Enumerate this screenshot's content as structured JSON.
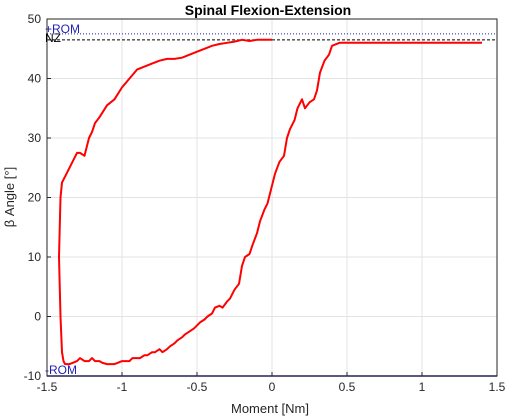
{
  "chart_data": {
    "type": "line",
    "title": "Spinal Flexion-Extension",
    "xlabel": "Moment [Nm]",
    "ylabel": "β Angle [°]",
    "xlim": [
      -1.5,
      1.5
    ],
    "ylim": [
      -10,
      50
    ],
    "xticks": [
      -1.5,
      -1,
      -0.5,
      0,
      0.5,
      1,
      1.5
    ],
    "xtick_labels": [
      "-1.5",
      "-1",
      "-0.5",
      "0",
      "0.5",
      "1",
      "1.5"
    ],
    "yticks": [
      -10,
      0,
      10,
      20,
      30,
      40,
      50
    ],
    "ytick_labels": [
      "-10",
      "0",
      "10",
      "20",
      "30",
      "40",
      "50"
    ],
    "grid": true,
    "reference_lines": [
      {
        "label": "+ROM",
        "y": 47.5,
        "color": "#1f1fb4",
        "style": "dotted"
      },
      {
        "label": "NZ",
        "y": 46.5,
        "color": "#000000",
        "style": "dashed"
      },
      {
        "label": "-ROM",
        "y": -10,
        "color": "#1f1fb4",
        "style": "solid"
      }
    ],
    "series": [
      {
        "color": "#ff0000",
        "x": [
          1.4,
          1.2,
          1.0,
          0.8,
          0.6,
          0.5,
          0.45,
          0.4,
          0.38,
          0.35,
          0.32,
          0.3,
          0.28,
          0.25,
          0.22,
          0.2,
          0.17,
          0.15,
          0.12,
          0.1,
          0.08,
          0.05,
          0.02,
          0.0,
          -0.03,
          -0.05,
          -0.08,
          -0.1,
          -0.13,
          -0.15,
          -0.18,
          -0.2,
          -0.22,
          -0.25,
          -0.28,
          -0.3,
          -0.33,
          -0.35,
          -0.38,
          -0.4,
          -0.43,
          -0.45,
          -0.48,
          -0.5,
          -0.52,
          -0.55,
          -0.58,
          -0.6,
          -0.63,
          -0.65,
          -0.68,
          -0.7,
          -0.73,
          -0.75,
          -0.78,
          -0.8,
          -0.83,
          -0.85,
          -0.88,
          -0.9,
          -0.93,
          -0.95,
          -0.98,
          -1.0,
          -1.03,
          -1.05,
          -1.08,
          -1.1,
          -1.13,
          -1.15,
          -1.18,
          -1.2,
          -1.22,
          -1.25,
          -1.28,
          -1.3,
          -1.33,
          -1.35,
          -1.38,
          -1.39,
          -1.4,
          -1.41,
          -1.42,
          -1.41,
          -1.4,
          -1.39,
          -1.38,
          -1.37,
          -1.35,
          -1.33,
          -1.3,
          -1.28,
          -1.25,
          -1.22,
          -1.2,
          -1.18,
          -1.15,
          -1.1,
          -1.05,
          -1.0,
          -0.95,
          -0.9,
          -0.85,
          -0.8,
          -0.75,
          -0.7,
          -0.65,
          -0.6,
          -0.55,
          -0.5,
          -0.45,
          -0.4,
          -0.35,
          -0.3,
          -0.25,
          -0.2,
          -0.15,
          -0.1,
          -0.05,
          0.0
        ],
        "y": [
          46.0,
          46.0,
          46.0,
          46.0,
          46.0,
          46.0,
          46.0,
          45.5,
          44.0,
          43.0,
          41.0,
          38.0,
          36.5,
          36.0,
          35.0,
          36.5,
          35.0,
          33.0,
          31.5,
          30.0,
          27.0,
          26.0,
          24.0,
          22.0,
          19.0,
          18.0,
          16.0,
          14.0,
          12.0,
          10.5,
          10.0,
          8.5,
          5.5,
          4.5,
          3.0,
          2.5,
          1.5,
          1.8,
          1.5,
          0.5,
          0.0,
          -0.5,
          -1.0,
          -1.5,
          -2.0,
          -2.5,
          -3.0,
          -3.5,
          -4.0,
          -4.5,
          -5.0,
          -5.5,
          -6.0,
          -5.5,
          -6.0,
          -6.0,
          -6.5,
          -6.5,
          -7.0,
          -7.0,
          -7.0,
          -7.5,
          -7.5,
          -7.5,
          -7.8,
          -8.0,
          -8.0,
          -8.0,
          -7.8,
          -7.5,
          -7.5,
          -7.0,
          -7.5,
          -7.5,
          -7.0,
          -7.5,
          -7.8,
          -8.0,
          -8.0,
          -7.5,
          -6.0,
          0.0,
          10.0,
          20.0,
          22.5,
          23.0,
          23.5,
          24.0,
          25.0,
          26.0,
          27.5,
          27.5,
          27.0,
          30.0,
          31.0,
          32.5,
          33.5,
          35.5,
          36.5,
          38.5,
          40.0,
          41.5,
          42.0,
          42.5,
          43.0,
          43.3,
          43.3,
          43.5,
          44.0,
          44.5,
          45.0,
          45.5,
          45.8,
          46.0,
          46.2,
          46.5,
          46.3,
          46.5,
          46.5,
          46.5
        ]
      }
    ]
  }
}
